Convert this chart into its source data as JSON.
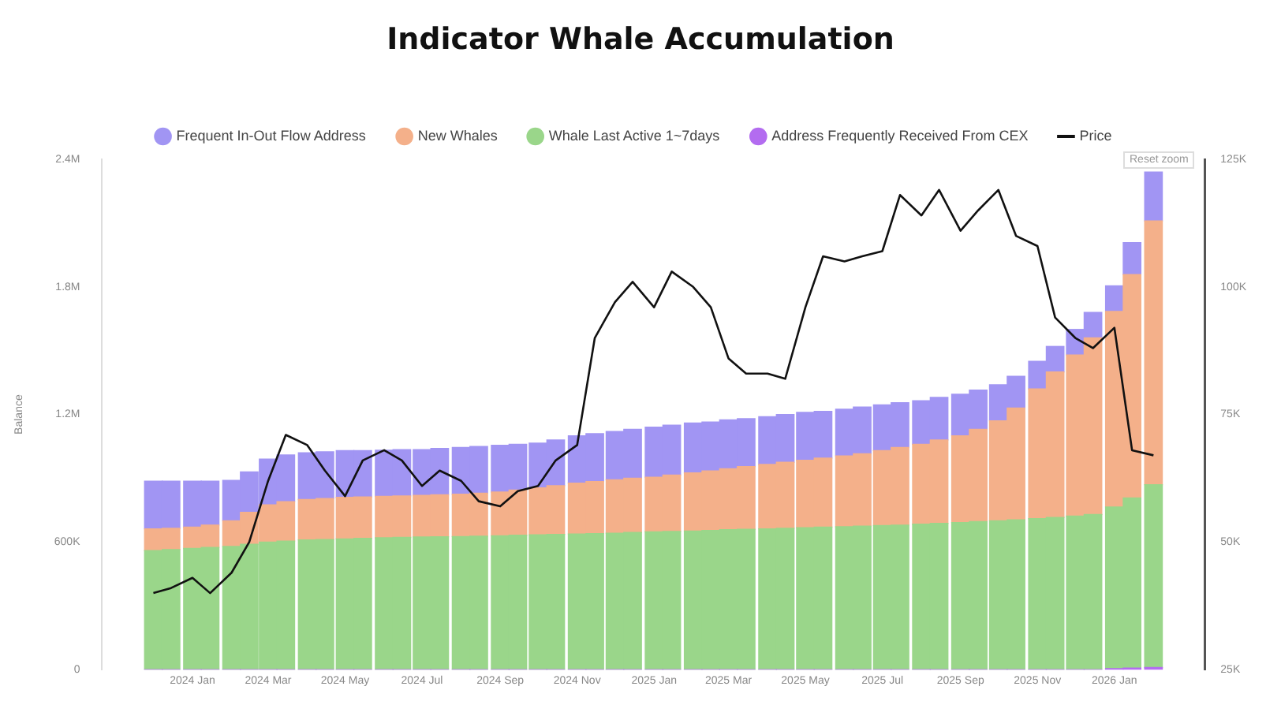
{
  "chart_data": {
    "type": "bar",
    "title": "Indicator Whale Accumulation",
    "ylabel": "Balance",
    "stacked": true,
    "legend": "top",
    "marker": "none",
    "line_style": "solid",
    "annotations": [
      "Reset zoom"
    ],
    "x": [
      "2023-12-01",
      "2023-12-15",
      "2024-01-01",
      "2024-01-15",
      "2024-02-01",
      "2024-02-15",
      "2024-03-01",
      "2024-03-15",
      "2024-04-01",
      "2024-04-15",
      "2024-05-01",
      "2024-05-15",
      "2024-06-01",
      "2024-06-15",
      "2024-07-01",
      "2024-07-15",
      "2024-08-01",
      "2024-08-15",
      "2024-09-01",
      "2024-09-15",
      "2024-10-01",
      "2024-10-15",
      "2024-11-01",
      "2024-11-15",
      "2024-12-01",
      "2024-12-15",
      "2025-01-01",
      "2025-01-15",
      "2025-02-01",
      "2025-02-15",
      "2025-03-01",
      "2025-03-15",
      "2025-04-01",
      "2025-04-15",
      "2025-05-01",
      "2025-05-15",
      "2025-06-01",
      "2025-06-15",
      "2025-07-01",
      "2025-07-15",
      "2025-08-01",
      "2025-08-15",
      "2025-09-01",
      "2025-09-15",
      "2025-10-01",
      "2025-10-15",
      "2025-11-01",
      "2025-11-15",
      "2025-12-01",
      "2025-12-15",
      "2026-01-01",
      "2026-01-15",
      "2026-02-01"
    ],
    "xlim": [
      "2023-11-24",
      "2026-02-08"
    ],
    "xticks": [
      {
        "value": "2024-01-01",
        "label": "2024 Jan"
      },
      {
        "value": "2024-03-01",
        "label": "2024 Mar"
      },
      {
        "value": "2024-05-01",
        "label": "2024 May"
      },
      {
        "value": "2024-07-01",
        "label": "2024 Jul"
      },
      {
        "value": "2024-09-01",
        "label": "2024 Sep"
      },
      {
        "value": "2024-11-01",
        "label": "2024 Nov"
      },
      {
        "value": "2025-01-01",
        "label": "2025 Jan"
      },
      {
        "value": "2025-03-01",
        "label": "2025 Mar"
      },
      {
        "value": "2025-05-01",
        "label": "2025 May"
      },
      {
        "value": "2025-07-01",
        "label": "2025 Jul"
      },
      {
        "value": "2025-09-01",
        "label": "2025 Sep"
      },
      {
        "value": "2025-11-01",
        "label": "2025 Nov"
      },
      {
        "value": "2026-01-01",
        "label": "2026 Jan"
      }
    ],
    "ylim": [
      0,
      2400000
    ],
    "yticks": [
      0,
      {
        "value": 600000,
        "label": "600K"
      },
      {
        "value": 1200000,
        "label": "1.2M"
      },
      {
        "value": 1800000,
        "label": "1.8M"
      },
      {
        "value": 2400000,
        "label": "2.4M"
      }
    ],
    "y2lim": [
      25000,
      125000
    ],
    "y2ticks": [
      {
        "value": 25000,
        "label": "25K"
      },
      {
        "value": 50000,
        "label": "50K"
      },
      {
        "value": 75000,
        "label": "75K"
      },
      {
        "value": 100000,
        "label": "100K"
      },
      {
        "value": 125000,
        "label": "125K"
      }
    ],
    "series": [
      {
        "name": "Address Frequently Received From CEX",
        "color": "#b36cf0",
        "values": [
          0,
          0,
          0,
          0,
          0,
          0,
          0,
          0,
          0,
          0,
          0,
          0,
          0,
          0,
          0,
          0,
          0,
          0,
          0,
          0,
          0,
          0,
          0,
          0,
          0,
          0,
          0,
          0,
          0,
          0,
          0,
          0,
          0,
          0,
          0,
          0,
          0,
          0,
          0,
          0,
          0,
          0,
          0,
          0,
          0,
          0,
          0,
          0,
          0,
          0,
          5000,
          8000,
          10000
        ]
      },
      {
        "name": "Whale Last Active 1~7days",
        "color": "#9ad68a",
        "values": [
          560000,
          565000,
          570000,
          575000,
          580000,
          590000,
          600000,
          605000,
          610000,
          612000,
          615000,
          618000,
          620000,
          622000,
          624000,
          625000,
          626000,
          628000,
          630000,
          632000,
          634000,
          636000,
          638000,
          640000,
          642000,
          645000,
          648000,
          650000,
          652000,
          655000,
          658000,
          660000,
          662000,
          665000,
          668000,
          670000,
          672000,
          675000,
          678000,
          680000,
          684000,
          688000,
          692000,
          696000,
          700000,
          705000,
          710000,
          716000,
          722000,
          730000,
          760000,
          800000,
          860000
        ]
      },
      {
        "name": "New Whales",
        "color": "#f4b08a",
        "values": [
          102000,
          100000,
          100000,
          105000,
          120000,
          150000,
          175000,
          185000,
          190000,
          193000,
          195000,
          194000,
          195000,
          195000,
          196000,
          197000,
          199000,
          202000,
          205000,
          213000,
          221000,
          229000,
          239000,
          245000,
          251000,
          255000,
          257000,
          265000,
          273000,
          280000,
          287000,
          295000,
          303000,
          310000,
          317000,
          325000,
          333000,
          340000,
          352000,
          365000,
          376000,
          392000,
          408000,
          434000,
          470000,
          525000,
          610000,
          684000,
          758000,
          830000,
          920000,
          1050000,
          1240000
        ]
      },
      {
        "name": "Frequent In-Out Flow Address",
        "color": "#a195f3",
        "values": [
          224000,
          221000,
          216000,
          206000,
          190000,
          190000,
          215000,
          220000,
          220000,
          220000,
          220000,
          218000,
          217000,
          218000,
          215000,
          218000,
          220000,
          220000,
          220000,
          215000,
          210000,
          215000,
          223000,
          225000,
          227000,
          230000,
          235000,
          235000,
          235000,
          230000,
          230000,
          225000,
          225000,
          225000,
          225000,
          220000,
          220000,
          220000,
          215000,
          210000,
          205000,
          200000,
          195000,
          185000,
          170000,
          150000,
          130000,
          120000,
          120000,
          120000,
          120000,
          150000,
          230000
        ]
      },
      {
        "name": "Price",
        "type": "line",
        "axis": "y2",
        "color": "#111111",
        "values": [
          40000,
          41000,
          43000,
          40000,
          44000,
          50000,
          62000,
          71000,
          69000,
          64000,
          59000,
          66000,
          68000,
          66000,
          61000,
          64000,
          62000,
          58000,
          57000,
          60000,
          61000,
          66000,
          69000,
          90000,
          97000,
          101000,
          96000,
          103000,
          100000,
          96000,
          86000,
          83000,
          83000,
          82000,
          96000,
          106000,
          105000,
          106000,
          107000,
          118000,
          114000,
          119000,
          111000,
          115000,
          119000,
          110000,
          108000,
          94000,
          90000,
          88000,
          92000,
          68000,
          67000
        ]
      }
    ]
  }
}
